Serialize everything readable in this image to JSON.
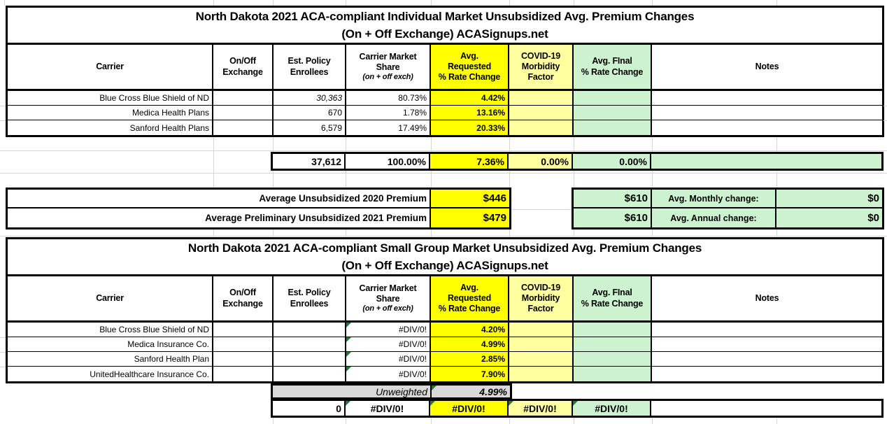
{
  "colors": {
    "yellow": "#FFFF00",
    "light_yellow": "#FFFFA0",
    "light_green": "#CDF2D0",
    "gray": "#D9D9D9",
    "triangle_green": "#1E7A37",
    "border_black": "#000000"
  },
  "headers": {
    "carrier": "Carrier",
    "exchange": "On/Off\nExchange",
    "enrollees": "Est. Policy\nEnrollees",
    "share_main": "Carrier Market\nShare",
    "share_sub": "(on + off exch)",
    "requested": "Avg.\nRequested\n% Rate Change",
    "covid": "COVID-19\nMorbidity\nFactor",
    "final": "Avg. FInal\n% Rate Change",
    "notes": "Notes"
  },
  "t1": {
    "title1": "North Dakota 2021 ACA-compliant Individual Market Unsubsidized Avg. Premium Changes",
    "title2": "(On + Off Exchange) ACASignups.net",
    "rows": [
      {
        "carrier": "Blue Cross Blue Shield of ND",
        "exchange": "",
        "enrollees": "30,363",
        "share": "80.73%",
        "requested": "4.42%",
        "covid": "",
        "final": "",
        "notes": ""
      },
      {
        "carrier": "Medica Health Plans",
        "exchange": "",
        "enrollees": "670",
        "share": "1.78%",
        "requested": "13.16%",
        "covid": "",
        "final": "",
        "notes": ""
      },
      {
        "carrier": "Sanford Health Plans",
        "exchange": "",
        "enrollees": "6,579",
        "share": "17.49%",
        "requested": "20.33%",
        "covid": "",
        "final": "",
        "notes": ""
      }
    ],
    "totals": {
      "enrollees": "37,612",
      "share": "100.00%",
      "requested": "7.36%",
      "covid": "0.00%",
      "final": "0.00%",
      "notes": ""
    },
    "premiums": [
      {
        "label": "Average Unsubsidized 2020 Premium",
        "value": "$446",
        "final": "$610",
        "change_label": "Avg. Monthly change:",
        "change_value": "$0"
      },
      {
        "label": "Average Preliminary Unsubsidized 2021 Premium",
        "value": "$479",
        "final": "$610",
        "change_label": "Avg. Annual change:",
        "change_value": "$0"
      }
    ]
  },
  "t2": {
    "title1": "North Dakota 2021 ACA-compliant Small Group Market Unsubsidized Avg. Premium Changes",
    "title2": "(On + Off Exchange) ACASignups.net",
    "rows": [
      {
        "carrier": "Blue Cross Blue Shield of ND",
        "exchange": "",
        "enrollees": "",
        "share": "#DIV/0!",
        "requested": "4.20%",
        "covid": "",
        "final": "",
        "notes": ""
      },
      {
        "carrier": "Medica Insurance Co.",
        "exchange": "",
        "enrollees": "",
        "share": "#DIV/0!",
        "requested": "4.99%",
        "covid": "",
        "final": "",
        "notes": ""
      },
      {
        "carrier": "Sanford Health Plan",
        "exchange": "",
        "enrollees": "",
        "share": "#DIV/0!",
        "requested": "2.85%",
        "covid": "",
        "final": "",
        "notes": ""
      },
      {
        "carrier": "UnitedHealthcare Insurance Co.",
        "exchange": "",
        "enrollees": "",
        "share": "#DIV/0!",
        "requested": "7.90%",
        "covid": "",
        "final": "",
        "notes": ""
      }
    ],
    "unweighted": {
      "label": "Unweighted",
      "value": "4.99%"
    },
    "totals": {
      "enrollees": "0",
      "share": "#DIV/0!",
      "requested": "#DIV/0!",
      "covid": "#DIV/0!",
      "final": "#DIV/0!",
      "notes": ""
    }
  }
}
